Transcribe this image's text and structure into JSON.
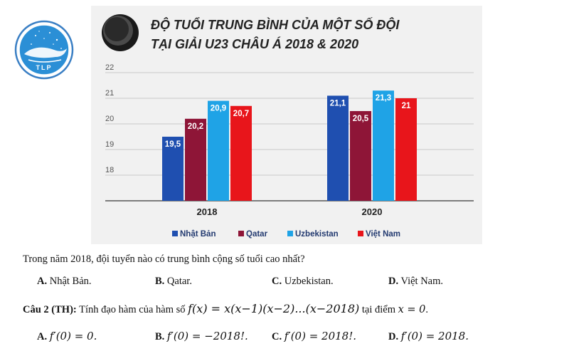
{
  "chart_data": {
    "type": "bar",
    "title_line1": "ĐỘ TUỔI TRUNG BÌNH CỦA MỘT SỐ ĐỘI",
    "title_line2": "TẠI GIẢI U23 CHÂU Á 2018 & 2020",
    "categories": [
      "2018",
      "2020"
    ],
    "series": [
      {
        "name": "Nhật Bản",
        "color": "#1f4fb0",
        "values": [
          19.5,
          21.1
        ],
        "labels": [
          "19,5",
          "21,1"
        ]
      },
      {
        "name": "Qatar",
        "color": "#8e1537",
        "values": [
          20.2,
          20.5
        ],
        "labels": [
          "20,2",
          "20,5"
        ]
      },
      {
        "name": "Uzbekistan",
        "color": "#1fa3e6",
        "values": [
          20.9,
          21.3
        ],
        "labels": [
          "20,9",
          "21,3"
        ]
      },
      {
        "name": "Việt Nam",
        "color": "#e8151b",
        "values": [
          20.7,
          21.0
        ],
        "labels": [
          "20,7",
          "21"
        ]
      }
    ],
    "yticks": [
      "18",
      "19",
      "20",
      "21",
      "22"
    ],
    "ylim": [
      17,
      22
    ],
    "grid": true,
    "legend": "bottom"
  },
  "logo": {
    "text": "TLP"
  },
  "question1": {
    "text": "Trong năm 2018, đội tuyển nào có trung bình cộng số tuổi cao nhất?",
    "options": [
      {
        "letter": "A.",
        "text": "Nhật Bản."
      },
      {
        "letter": "B.",
        "text": "Qatar."
      },
      {
        "letter": "C.",
        "text": "Uzbekistan."
      },
      {
        "letter": "D.",
        "text": "Việt Nam."
      }
    ]
  },
  "question2": {
    "label": "Câu 2 (TH):",
    "text": "Tính đạo hàm của hàm số",
    "formula": "f(x) = x(x−1)(x−2)...(x−2018)",
    "suffix": "tại điểm",
    "point": "x = 0",
    "end": ".",
    "options": [
      {
        "letter": "A.",
        "text": "f′(0) = 0."
      },
      {
        "letter": "B.",
        "text": "f′(0) = −2018!."
      },
      {
        "letter": "C.",
        "text": "f′(0) = 2018!."
      },
      {
        "letter": "D.",
        "text": "f′(0) = 2018."
      }
    ]
  }
}
